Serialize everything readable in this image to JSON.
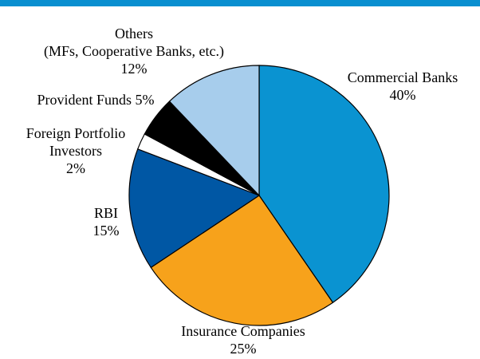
{
  "chart_data": {
    "type": "pie",
    "categories": [
      "Commercial Banks",
      "Insurance Companies",
      "RBI",
      "Foreign Portfolio\nInvestors",
      "Provident Funds",
      "Others\n(MFs, Cooperative Banks, etc.)"
    ],
    "values": [
      40,
      25,
      15,
      2,
      5,
      12
    ],
    "value_labels": [
      "40%",
      "25%",
      "15%",
      "2%",
      "5%",
      "12%"
    ],
    "colors": [
      "#0a93d1",
      "#f7a21b",
      "#0057a4",
      "#ffffff",
      "#000000",
      "#a7cdec"
    ]
  }
}
